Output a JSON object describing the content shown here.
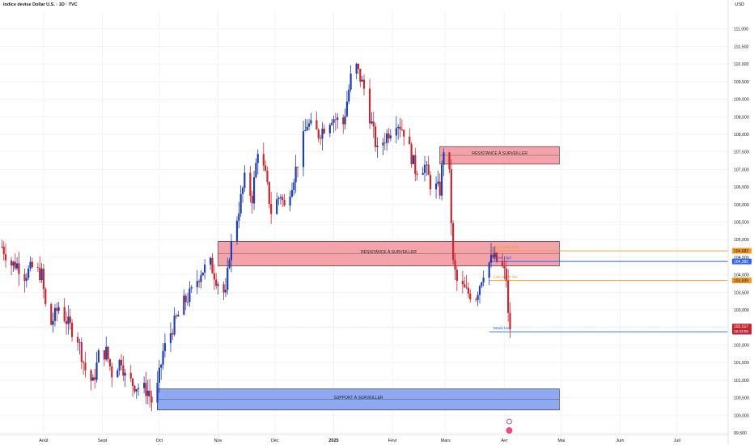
{
  "header": {
    "title": "Indice devise Dollar U.S. · 1D · TVC",
    "currency": "USD"
  },
  "colors": {
    "up": "#1e3fae",
    "down": "#c8262f",
    "resistance_fill": "#f4a3ab",
    "support_fill": "#8ea8f2",
    "orange": "#f59a23",
    "blue": "#2962ff",
    "grid": "#f0f3fa",
    "axis_text": "#131722"
  },
  "chart_data": {
    "type": "candlestick",
    "title": "Indice devise Dollar U.S. · 1D · TVC",
    "ylim": [
      99.5,
      111.5
    ],
    "y_ticks": [
      "99,500",
      "100,000",
      "100,500",
      "101,000",
      "101,500",
      "102,000",
      "102,500",
      "103,000",
      "103,500",
      "104,000",
      "104,500",
      "105,000",
      "105,500",
      "106,000",
      "106,500",
      "107,000",
      "107,500",
      "108,000",
      "108,500",
      "109,000",
      "109,500",
      "110,000",
      "110,500",
      "111,000"
    ],
    "x_ticks": [
      {
        "label": "Août",
        "date": "2024-08-01"
      },
      {
        "label": "Sept",
        "date": "2024-09-01"
      },
      {
        "label": "Oct",
        "date": "2024-10-01"
      },
      {
        "label": "Nov",
        "date": "2024-11-01"
      },
      {
        "label": "Déc",
        "date": "2024-12-01"
      },
      {
        "label": "2025",
        "date": "2025-01-01",
        "bold": true
      },
      {
        "label": "Févr",
        "date": "2025-02-01"
      },
      {
        "label": "Mars",
        "date": "2025-03-01"
      },
      {
        "label": "Avr",
        "date": "2025-04-01"
      },
      {
        "label": "Mai",
        "date": "2025-05-01"
      },
      {
        "label": "Juin",
        "date": "2025-06-01"
      },
      {
        "label": "Juil",
        "date": "2025-07-01"
      }
    ],
    "x_range": [
      "2024-07-09",
      "2025-07-28"
    ],
    "close_path": [
      [
        "2024-07-10",
        104.8
      ],
      [
        "2024-07-15",
        104.3
      ],
      [
        "2024-07-18",
        104.3
      ],
      [
        "2024-07-22",
        104.0
      ],
      [
        "2024-07-26",
        104.2
      ],
      [
        "2024-07-31",
        104.0
      ],
      [
        "2024-08-02",
        103.1
      ],
      [
        "2024-08-05",
        102.6
      ],
      [
        "2024-08-09",
        103.1
      ],
      [
        "2024-08-14",
        102.6
      ],
      [
        "2024-08-19",
        102.2
      ],
      [
        "2024-08-23",
        101.3
      ],
      [
        "2024-08-27",
        100.9
      ],
      [
        "2024-08-30",
        101.7
      ],
      [
        "2024-09-03",
        101.8
      ],
      [
        "2024-09-06",
        101.2
      ],
      [
        "2024-09-11",
        101.6
      ],
      [
        "2024-09-13",
        101.1
      ],
      [
        "2024-09-17",
        100.9
      ],
      [
        "2024-09-20",
        100.8
      ],
      [
        "2024-09-25",
        100.7
      ],
      [
        "2024-09-27",
        100.4
      ],
      [
        "2024-09-30",
        100.8
      ],
      [
        "2024-10-03",
        101.8
      ],
      [
        "2024-10-08",
        102.5
      ],
      [
        "2024-10-14",
        103.2
      ],
      [
        "2024-10-18",
        103.5
      ],
      [
        "2024-10-23",
        104.1
      ],
      [
        "2024-10-28",
        104.3
      ],
      [
        "2024-10-31",
        103.9
      ],
      [
        "2024-11-05",
        103.4
      ],
      [
        "2024-11-07",
        104.6
      ],
      [
        "2024-11-12",
        105.9
      ],
      [
        "2024-11-15",
        106.7
      ],
      [
        "2024-11-19",
        106.2
      ],
      [
        "2024-11-22",
        107.6
      ],
      [
        "2024-11-26",
        106.8
      ],
      [
        "2024-11-29",
        105.8
      ],
      [
        "2024-12-04",
        106.3
      ],
      [
        "2024-12-06",
        105.9
      ],
      [
        "2024-12-12",
        107.0
      ],
      [
        "2024-12-18",
        108.3
      ],
      [
        "2024-12-24",
        108.0
      ],
      [
        "2024-12-31",
        108.5
      ],
      [
        "2025-01-06",
        108.3
      ],
      [
        "2025-01-10",
        109.6
      ],
      [
        "2025-01-13",
        109.9
      ],
      [
        "2025-01-17",
        109.3
      ],
      [
        "2025-01-24",
        107.5
      ],
      [
        "2025-01-28",
        107.9
      ],
      [
        "2025-02-03",
        108.4
      ],
      [
        "2025-02-07",
        108.1
      ],
      [
        "2025-02-13",
        107.0
      ],
      [
        "2025-02-18",
        107.1
      ],
      [
        "2025-02-21",
        106.6
      ],
      [
        "2025-02-26",
        106.4
      ],
      [
        "2025-02-28",
        107.6
      ],
      [
        "2025-03-03",
        106.8
      ],
      [
        "2025-03-05",
        104.3
      ],
      [
        "2025-03-07",
        103.8
      ],
      [
        "2025-03-12",
        103.5
      ],
      [
        "2025-03-17",
        103.4
      ],
      [
        "2025-03-21",
        104.1
      ],
      [
        "2025-03-26",
        104.5
      ],
      [
        "2025-03-31",
        104.2
      ],
      [
        "2025-04-02",
        103.9
      ],
      [
        "2025-04-03",
        102.8
      ],
      [
        "2025-04-04",
        102.5
      ]
    ],
    "zones": [
      {
        "label": "RÉSISTANCE À SURVEILLER",
        "kind": "resistance",
        "from": "2025-02-26",
        "to": "2025-04-30",
        "y_low": 107.15,
        "y_high": 107.65
      },
      {
        "label": "RÉSISTANCE À SURVEILLER",
        "kind": "resistance",
        "from": "2024-11-01",
        "to": "2025-04-30",
        "y_low": 104.25,
        "y_high": 104.95
      },
      {
        "label": "SUPPORT À SURVEILLER",
        "kind": "support",
        "from": "2024-09-30",
        "to": "2025-04-30",
        "y_low": 100.15,
        "y_high": 100.75
      }
    ],
    "levels": [
      {
        "label": "Last week high",
        "value": 104.682,
        "color": "orange",
        "from": "2025-03-24",
        "price_label": "104,682"
      },
      {
        "label": "Week high",
        "value": 104.38,
        "color": "blue",
        "from": "2025-03-24",
        "price_label": "104,380"
      },
      {
        "label": "Last week low",
        "value": 103.839,
        "color": "orange",
        "from": "2025-03-24",
        "price_label": "103,839"
      },
      {
        "label": "Week low",
        "value": 102.378,
        "color": "blue",
        "from": "2025-03-24",
        "price_label": "102,378"
      }
    ],
    "last_price": {
      "value": 102.517,
      "label": "102,517",
      "countdown": "15:43:55"
    }
  }
}
